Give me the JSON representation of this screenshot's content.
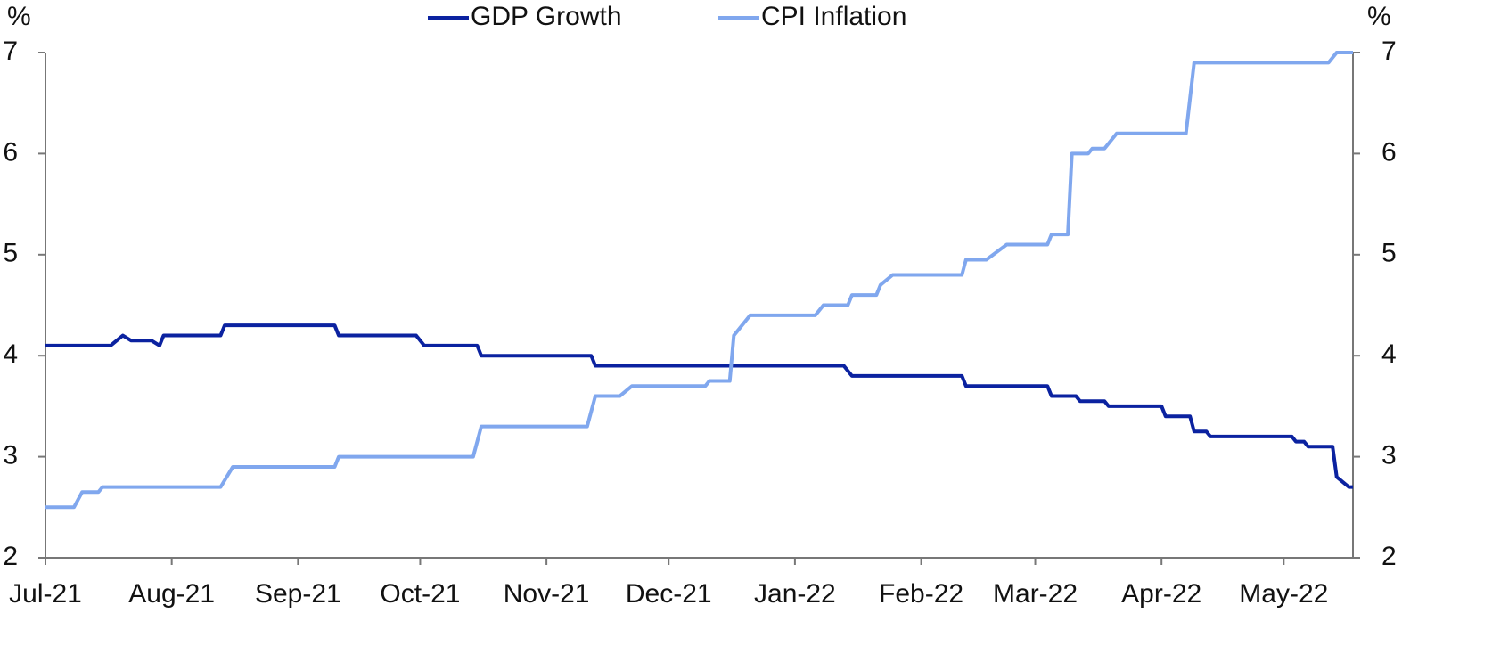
{
  "chart_data": {
    "type": "line",
    "y_label": "%",
    "y2_label": "%",
    "xlim": [
      0,
      321
    ],
    "xticks": [
      {
        "value": 0,
        "label": "Jul-21"
      },
      {
        "value": 31,
        "label": "Aug-21"
      },
      {
        "value": 62,
        "label": "Sep-21"
      },
      {
        "value": 92,
        "label": "Oct-21"
      },
      {
        "value": 123,
        "label": "Nov-21"
      },
      {
        "value": 153,
        "label": "Dec-21"
      },
      {
        "value": 184,
        "label": "Jan-22"
      },
      {
        "value": 215,
        "label": "Feb-22"
      },
      {
        "value": 243,
        "label": "Mar-22"
      },
      {
        "value": 274,
        "label": "Apr-22"
      },
      {
        "value": 304,
        "label": "May-22"
      }
    ],
    "ylim": [
      2,
      7
    ],
    "yticks": [
      2,
      3,
      4,
      5,
      6,
      7
    ],
    "y2lim": [
      2,
      7
    ],
    "y2ticks": [
      2,
      3,
      4,
      5,
      6,
      7
    ],
    "legend": "top",
    "series": [
      {
        "name": "GDP Growth",
        "color": "#0b22a0",
        "x": [
          0,
          16,
          19,
          21,
          26,
          28,
          29,
          43,
          44,
          71,
          72,
          91,
          93,
          106,
          107,
          134,
          135,
          196,
          198,
          225,
          226,
          246,
          247,
          253,
          254,
          260,
          261,
          274,
          275,
          281,
          282,
          285,
          286,
          306,
          307,
          309,
          310,
          316,
          317,
          320,
          321
        ],
        "values": [
          4.1,
          4.1,
          4.2,
          4.15,
          4.15,
          4.1,
          4.2,
          4.2,
          4.3,
          4.3,
          4.2,
          4.2,
          4.1,
          4.1,
          4.0,
          4.0,
          3.9,
          3.9,
          3.8,
          3.8,
          3.7,
          3.7,
          3.6,
          3.6,
          3.55,
          3.55,
          3.5,
          3.5,
          3.4,
          3.4,
          3.25,
          3.25,
          3.2,
          3.2,
          3.15,
          3.15,
          3.1,
          3.1,
          2.8,
          2.7,
          2.7
        ]
      },
      {
        "name": "CPI Inflation",
        "color": "#80a7ee",
        "axis": "y2",
        "x": [
          0,
          7,
          9,
          13,
          14,
          43,
          46,
          71,
          72,
          105,
          107,
          133,
          135,
          141,
          144,
          162,
          163,
          168,
          169,
          173,
          189,
          191,
          197,
          198,
          204,
          205,
          208,
          225,
          226,
          231,
          236,
          246,
          247,
          251,
          252,
          256,
          257,
          260,
          263,
          280,
          282,
          315,
          317,
          321
        ],
        "values": [
          2.5,
          2.5,
          2.65,
          2.65,
          2.7,
          2.7,
          2.9,
          2.9,
          3.0,
          3.0,
          3.3,
          3.3,
          3.6,
          3.6,
          3.7,
          3.7,
          3.75,
          3.75,
          4.2,
          4.4,
          4.4,
          4.5,
          4.5,
          4.6,
          4.6,
          4.7,
          4.8,
          4.8,
          4.95,
          4.95,
          5.1,
          5.1,
          5.2,
          5.2,
          6.0,
          6.0,
          6.05,
          6.05,
          6.2,
          6.2,
          6.9,
          6.9,
          7.0,
          7.0
        ]
      }
    ]
  }
}
